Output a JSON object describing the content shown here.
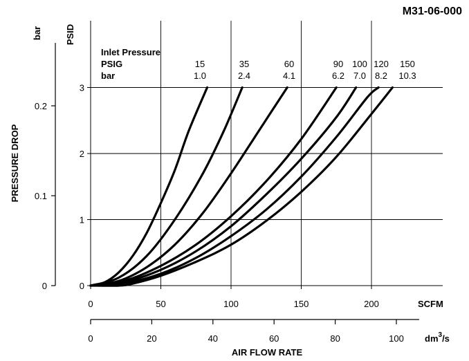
{
  "chart_data": {
    "type": "line",
    "title": "M31-06-000",
    "xlabel": "AIR FLOW RATE",
    "ylabel": "PRESSURE DROP",
    "x_axis": {
      "unit": "SCFM",
      "ticks": [
        0,
        50,
        100,
        150,
        200
      ],
      "range": [
        0,
        240
      ]
    },
    "x2_axis": {
      "unit_base": "dm",
      "unit_exp": "3",
      "unit_tail": "/s",
      "ticks": [
        0,
        20,
        40,
        60,
        80,
        100
      ],
      "range": [
        0,
        113.27
      ]
    },
    "y_axis": {
      "unit": "PSID",
      "ticks": [
        0,
        1,
        2,
        3
      ],
      "range": [
        0,
        3.2
      ]
    },
    "y2_axis": {
      "unit": "bar",
      "ticks": [
        0,
        0.1,
        0.2
      ],
      "range": [
        0,
        0.2206
      ]
    },
    "legend": {
      "heading": "Inlet Pressure",
      "row1_label": "PSIG",
      "row2_label": "bar",
      "psig": [
        "15",
        "35",
        "60",
        "90",
        "100",
        "120",
        "150"
      ],
      "bar": [
        "1.0",
        "2.4",
        "4.1",
        "6.2",
        "7.0",
        "8.2",
        "10.3"
      ]
    },
    "grid": true,
    "series": [
      {
        "name": "15",
        "values": [
          [
            0,
            0
          ],
          [
            10,
            0.05
          ],
          [
            20,
            0.2
          ],
          [
            30,
            0.45
          ],
          [
            40,
            0.8
          ],
          [
            50,
            1.25
          ],
          [
            60,
            1.75
          ],
          [
            70,
            2.35
          ],
          [
            83,
            3.0
          ]
        ]
      },
      {
        "name": "35",
        "values": [
          [
            0,
            0
          ],
          [
            20,
            0.12
          ],
          [
            40,
            0.45
          ],
          [
            60,
            1.0
          ],
          [
            80,
            1.7
          ],
          [
            95,
            2.35
          ],
          [
            108,
            3.0
          ]
        ]
      },
      {
        "name": "60",
        "values": [
          [
            0,
            0
          ],
          [
            20,
            0.07
          ],
          [
            40,
            0.28
          ],
          [
            60,
            0.62
          ],
          [
            80,
            1.1
          ],
          [
            100,
            1.7
          ],
          [
            120,
            2.35
          ],
          [
            140,
            3.0
          ]
        ]
      },
      {
        "name": "90",
        "values": [
          [
            0,
            0
          ],
          [
            25,
            0.08
          ],
          [
            50,
            0.3
          ],
          [
            75,
            0.62
          ],
          [
            100,
            1.05
          ],
          [
            125,
            1.58
          ],
          [
            150,
            2.22
          ],
          [
            175,
            3.0
          ]
        ]
      },
      {
        "name": "100",
        "values": [
          [
            0,
            0
          ],
          [
            25,
            0.06
          ],
          [
            50,
            0.24
          ],
          [
            75,
            0.52
          ],
          [
            100,
            0.9
          ],
          [
            125,
            1.38
          ],
          [
            150,
            1.92
          ],
          [
            175,
            2.55
          ],
          [
            189,
            3.0
          ]
        ]
      },
      {
        "name": "120",
        "values": [
          [
            0,
            0
          ],
          [
            25,
            0.04
          ],
          [
            50,
            0.18
          ],
          [
            75,
            0.42
          ],
          [
            100,
            0.75
          ],
          [
            125,
            1.15
          ],
          [
            150,
            1.65
          ],
          [
            175,
            2.25
          ],
          [
            197,
            2.85
          ],
          [
            205,
            3.0
          ]
        ]
      },
      {
        "name": "150",
        "values": [
          [
            0,
            0
          ],
          [
            20,
            0.0
          ],
          [
            30,
            0.03
          ],
          [
            50,
            0.15
          ],
          [
            75,
            0.36
          ],
          [
            100,
            0.62
          ],
          [
            125,
            0.98
          ],
          [
            150,
            1.42
          ],
          [
            175,
            1.95
          ],
          [
            200,
            2.6
          ],
          [
            215,
            3.0
          ]
        ]
      }
    ]
  }
}
